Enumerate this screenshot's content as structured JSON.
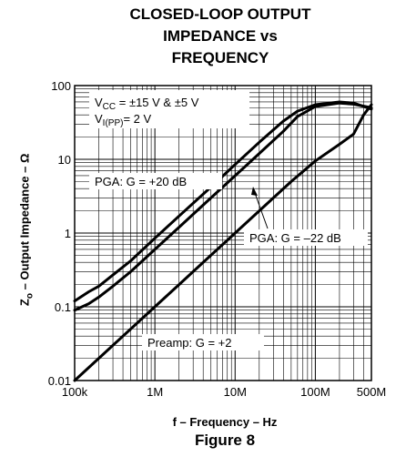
{
  "chart_data": {
    "type": "line",
    "title_lines": [
      "CLOSED-LOOP OUTPUT",
      "IMPEDANCE vs",
      "FREQUENCY"
    ],
    "xlabel": "f – Frequency – Hz",
    "ylabel_main": "Z",
    "ylabel_sub": "o",
    "ylabel_rest": " – Output Impedance – Ω",
    "caption": "Figure 8",
    "x_scale": "log",
    "y_scale": "log",
    "xlim": [
      100000,
      500000000
    ],
    "ylim": [
      0.01,
      100
    ],
    "x_ticks": [
      {
        "value": 100000,
        "label": "100k"
      },
      {
        "value": 1000000,
        "label": "1M"
      },
      {
        "value": 10000000,
        "label": "10M"
      },
      {
        "value": 100000000,
        "label": "100M"
      },
      {
        "value": 500000000,
        "label": "500M"
      }
    ],
    "y_ticks": [
      {
        "value": 100,
        "label": "100"
      },
      {
        "value": 10,
        "label": "10"
      },
      {
        "value": 1,
        "label": "1"
      },
      {
        "value": 0.1,
        "label": "0.1"
      },
      {
        "value": 0.01,
        "label": "0.01"
      }
    ],
    "grid": true,
    "conditions": {
      "line1_main": "V",
      "line1_sub": "CC",
      "line1_rest": " = ±15 V & ±5 V",
      "line2_main": "V",
      "line2_sub": "I(PP)",
      "line2_rest": "=  2 V"
    },
    "series": [
      {
        "name": "PGA: G = +20 dB",
        "x": [
          100000,
          150000,
          200000,
          300000,
          500000,
          1000000,
          2000000,
          5000000,
          10000000,
          20000000,
          40000000,
          60000000,
          100000000,
          200000000,
          300000000,
          500000000
        ],
        "y": [
          0.12,
          0.16,
          0.19,
          0.27,
          0.42,
          0.85,
          1.7,
          4.2,
          8.5,
          17,
          33,
          45,
          55,
          60,
          58,
          48
        ]
      },
      {
        "name": "PGA: G = –22 dB",
        "x": [
          100000,
          150000,
          200000,
          300000,
          500000,
          1000000,
          2000000,
          5000000,
          10000000,
          20000000,
          40000000,
          60000000,
          100000000,
          200000000,
          300000000,
          500000000
        ],
        "y": [
          0.09,
          0.11,
          0.135,
          0.19,
          0.3,
          0.6,
          1.2,
          3.0,
          6.0,
          12,
          24,
          38,
          52,
          58,
          56,
          50
        ]
      },
      {
        "name": "Preamp: G = +2",
        "x": [
          100000,
          200000,
          500000,
          1000000,
          2000000,
          5000000,
          10000000,
          20000000,
          50000000,
          100000000,
          200000000,
          300000000,
          400000000,
          500000000
        ],
        "y": [
          0.01,
          0.02,
          0.05,
          0.1,
          0.2,
          0.5,
          1.0,
          2.0,
          5.0,
          9.5,
          16,
          22,
          40,
          55
        ]
      }
    ],
    "annotations": [
      "PGA: G = +20 dB",
      "PGA: G = –22 dB",
      "Preamp: G = +2"
    ]
  }
}
